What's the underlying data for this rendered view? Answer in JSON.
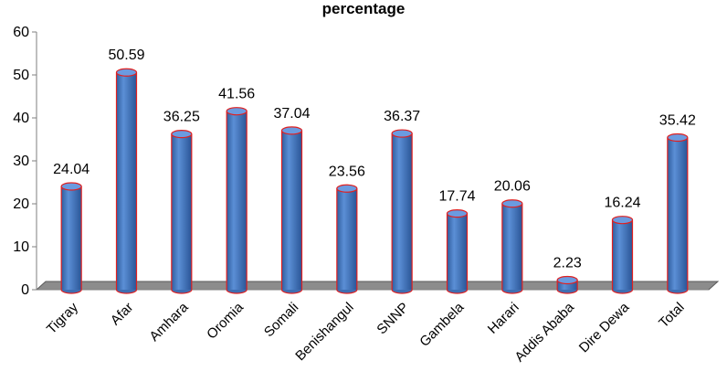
{
  "chart_data": {
    "type": "bar",
    "title": "percentage",
    "categories": [
      "Tigray",
      "Afar",
      "Amhara",
      "Oromia",
      "Somali",
      "Benishangul",
      "SNNP",
      "Gambela",
      "Harari",
      "Addis Ababa",
      "Dire Dewa",
      "Total"
    ],
    "series": [
      {
        "values": [
          24.04,
          50.59,
          36.25,
          41.56,
          37.04,
          23.56,
          36.37,
          17.74,
          20.06,
          2.23,
          16.24,
          35.42
        ]
      }
    ],
    "value_labels": [
      "24.04",
      "50.59",
      "36.25",
      "41.56",
      "37.04",
      "23.56",
      "36.37",
      "17.74",
      "20.06",
      "2.23",
      "16.24",
      "35.42"
    ],
    "ylim": [
      0,
      60
    ],
    "yticks": [
      "0",
      "10",
      "20",
      "30",
      "40",
      "50",
      "60"
    ],
    "grid": false,
    "legend": "none",
    "bar_color": "#4a7cc4",
    "bar_edge_color": "#e02020",
    "floor_color": "#8c8c8c"
  }
}
